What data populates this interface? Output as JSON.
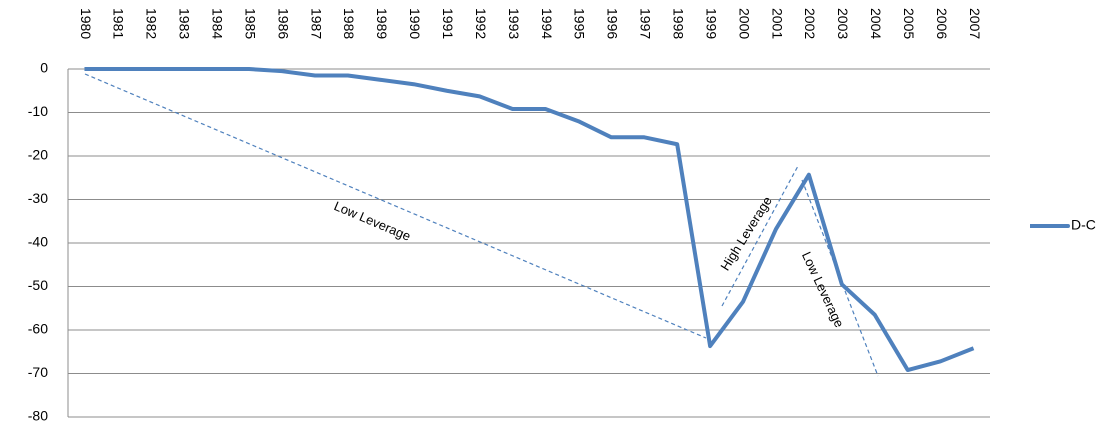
{
  "chart_data": {
    "type": "line",
    "categories": [
      "1980",
      "1981",
      "1982",
      "1983",
      "1984",
      "1985",
      "1986",
      "1987",
      "1988",
      "1989",
      "1990",
      "1991",
      "1992",
      "1993",
      "1994",
      "1995",
      "1996",
      "1997",
      "1998",
      "1999",
      "2000",
      "2001",
      "2002",
      "2003",
      "2004",
      "2005",
      "2006",
      "2007"
    ],
    "series": [
      {
        "name": "D-C",
        "color": "#4f81bd",
        "values": [
          0,
          0,
          0,
          0,
          0,
          0,
          -0.5,
          -1.5,
          -1.5,
          -2.5,
          -3.5,
          -5,
          -6.3,
          -9.2,
          -9.2,
          -12,
          -15.7,
          -15.7,
          -17.3,
          -63.7,
          -53.5,
          -36.8,
          -24.3,
          -49.5,
          -56.5,
          -69.2,
          -67.2,
          -64.2
        ]
      }
    ],
    "ylim": [
      -80,
      0
    ],
    "yticks": [
      0,
      -10,
      -20,
      -30,
      -40,
      -50,
      -60,
      -70,
      -80
    ],
    "grid": true,
    "annotations": [
      "Low Leverage",
      "High Leverage",
      "Low Leverage"
    ]
  }
}
